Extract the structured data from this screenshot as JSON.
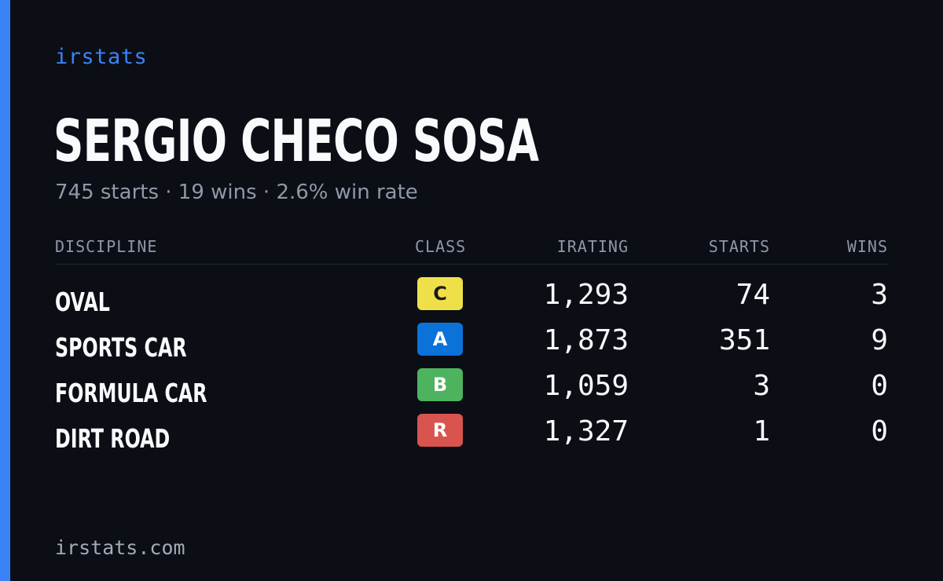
{
  "brand": "irstats",
  "driver": {
    "name": "SERGIO CHECO SOSA",
    "summary": "745 starts · 19 wins · 2.6% win rate"
  },
  "table": {
    "headers": {
      "discipline": "DISCIPLINE",
      "class": "CLASS",
      "irating": "IRATING",
      "starts": "STARTS",
      "wins": "WINS"
    },
    "rows": [
      {
        "discipline": "OVAL",
        "class": "C",
        "class_color": "#efe04a",
        "class_text_color": "#1a1a1a",
        "irating": "1,293",
        "starts": "74",
        "wins": "3"
      },
      {
        "discipline": "SPORTS CAR",
        "class": "A",
        "class_color": "#0b72d9",
        "class_text_color": "#ffffff",
        "irating": "1,873",
        "starts": "351",
        "wins": "9"
      },
      {
        "discipline": "FORMULA CAR",
        "class": "B",
        "class_color": "#4db35e",
        "class_text_color": "#ffffff",
        "irating": "1,059",
        "starts": "3",
        "wins": "0"
      },
      {
        "discipline": "DIRT ROAD",
        "class": "R",
        "class_color": "#d9534f",
        "class_text_color": "#ffffff",
        "irating": "1,327",
        "starts": "1",
        "wins": "0"
      }
    ]
  },
  "footer": "irstats.com",
  "colors": {
    "background": "#0b0e15",
    "accent": "#3b82f6",
    "text_primary": "#f8fafc",
    "text_muted": "#8f98a8"
  }
}
